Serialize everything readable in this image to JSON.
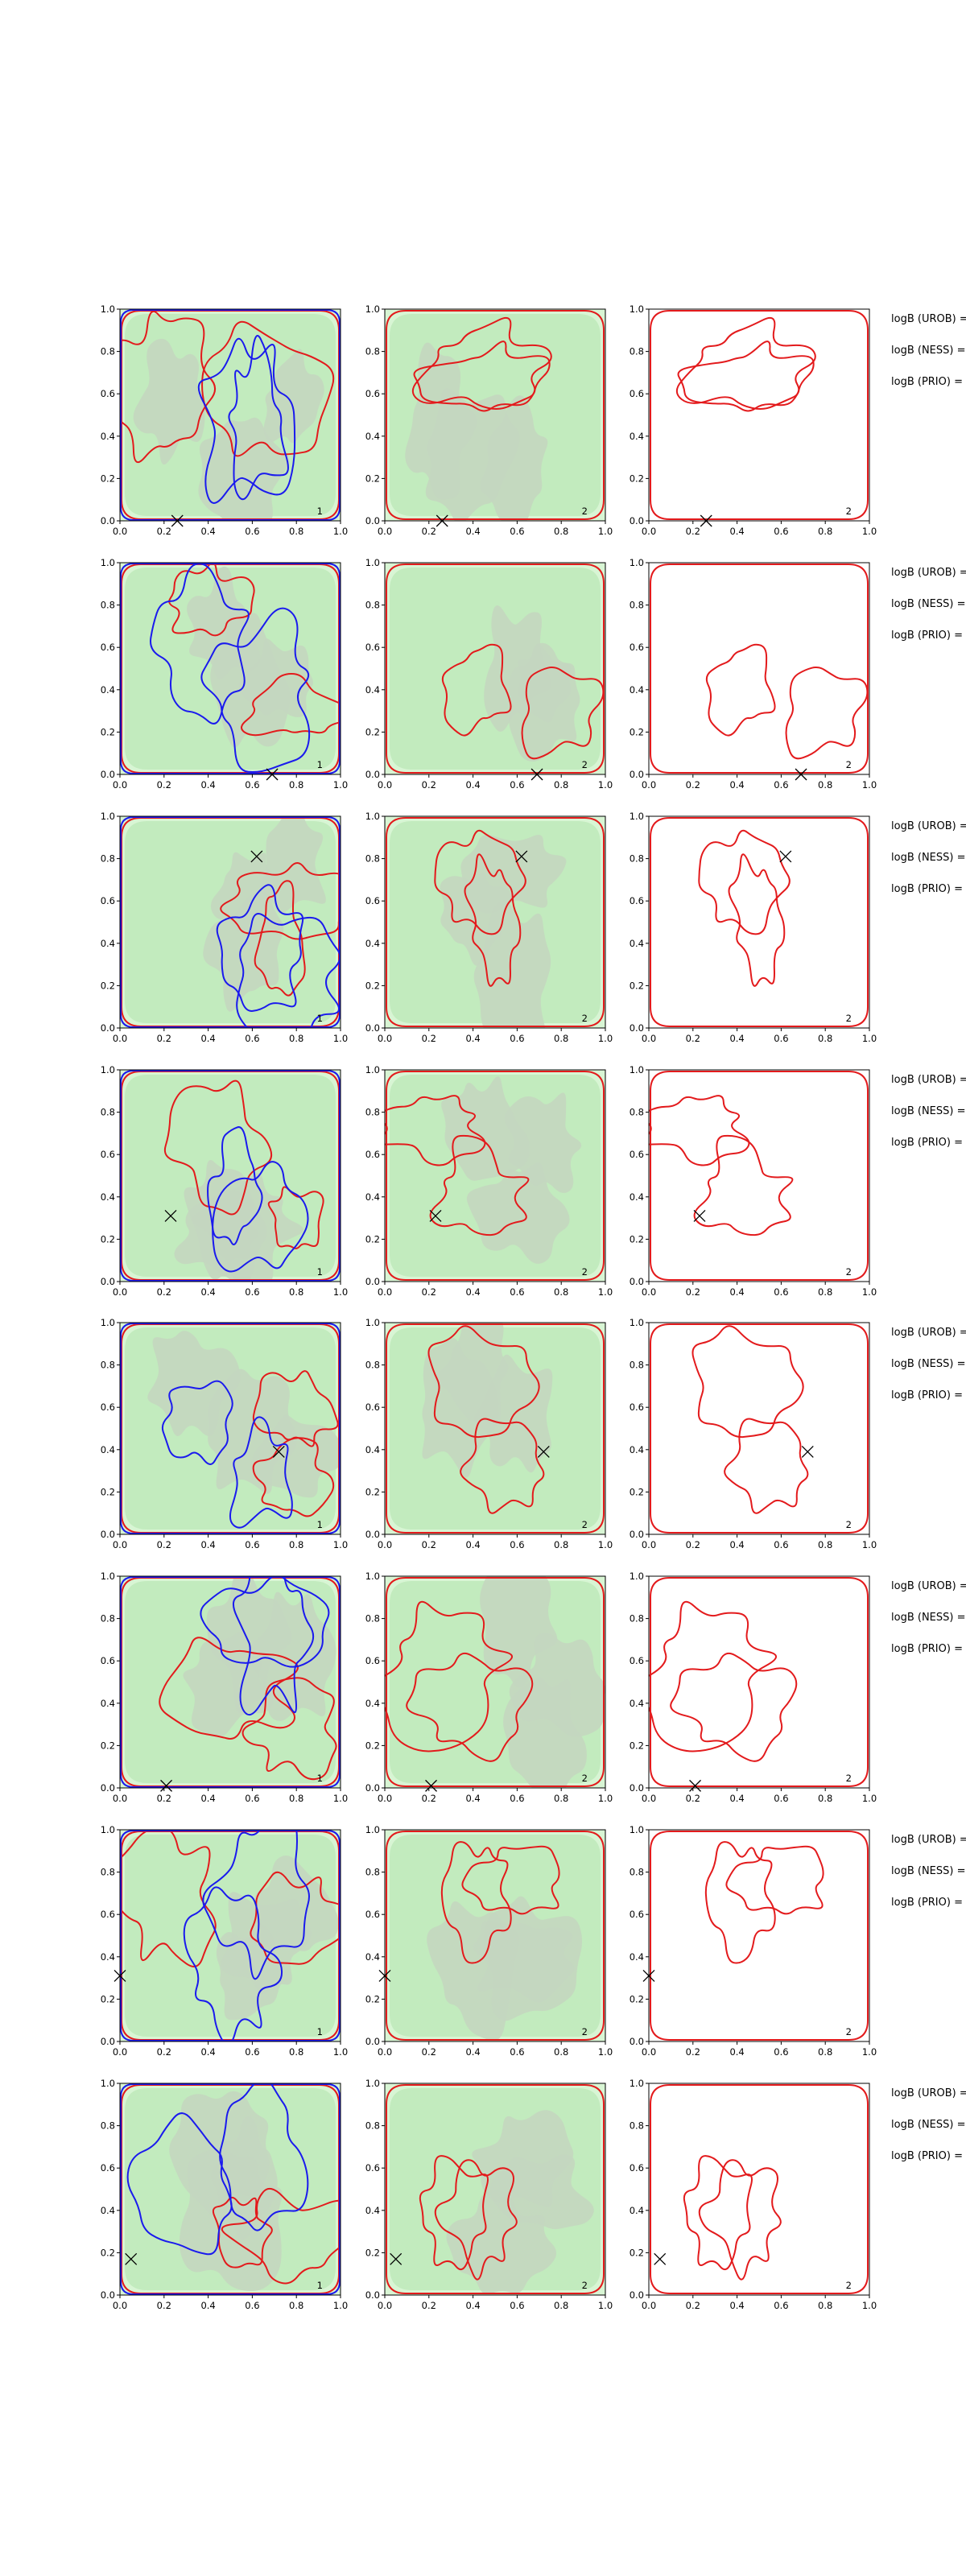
{
  "chart_data": {
    "type": "contour-grid",
    "rows": 8,
    "columns": 3,
    "xlim": [
      0,
      1
    ],
    "ylim": [
      0,
      1
    ],
    "x_ticks": [
      "0.0",
      "0.2",
      "0.4",
      "0.6",
      "0.8",
      "1.0"
    ],
    "y_ticks": [
      "0.0",
      "0.2",
      "0.4",
      "0.6",
      "0.8",
      "1.0"
    ],
    "panel_labels": [
      "1",
      "2",
      "2"
    ],
    "side_labels": [
      "logB (UROB) =",
      "logB (NESS) =",
      "logB (PRIO) ="
    ],
    "markers": [
      {
        "x": 0.26,
        "y": 0.0
      },
      {
        "x": 0.69,
        "y": 0.0
      },
      {
        "x": 0.62,
        "y": 0.81
      },
      {
        "x": 0.23,
        "y": 0.31
      },
      {
        "x": 0.72,
        "y": 0.39
      },
      {
        "x": 0.21,
        "y": 0.01
      },
      {
        "x": 0.0,
        "y": 0.31
      },
      {
        "x": 0.05,
        "y": 0.17
      }
    ],
    "colors": {
      "red_contour": "#e31a1c",
      "blue_contour": "#1a1aee",
      "fill_light": "#d8f5d4",
      "fill_mid": "#c2ebbe",
      "fill_dark": "#c4d6c0"
    }
  }
}
